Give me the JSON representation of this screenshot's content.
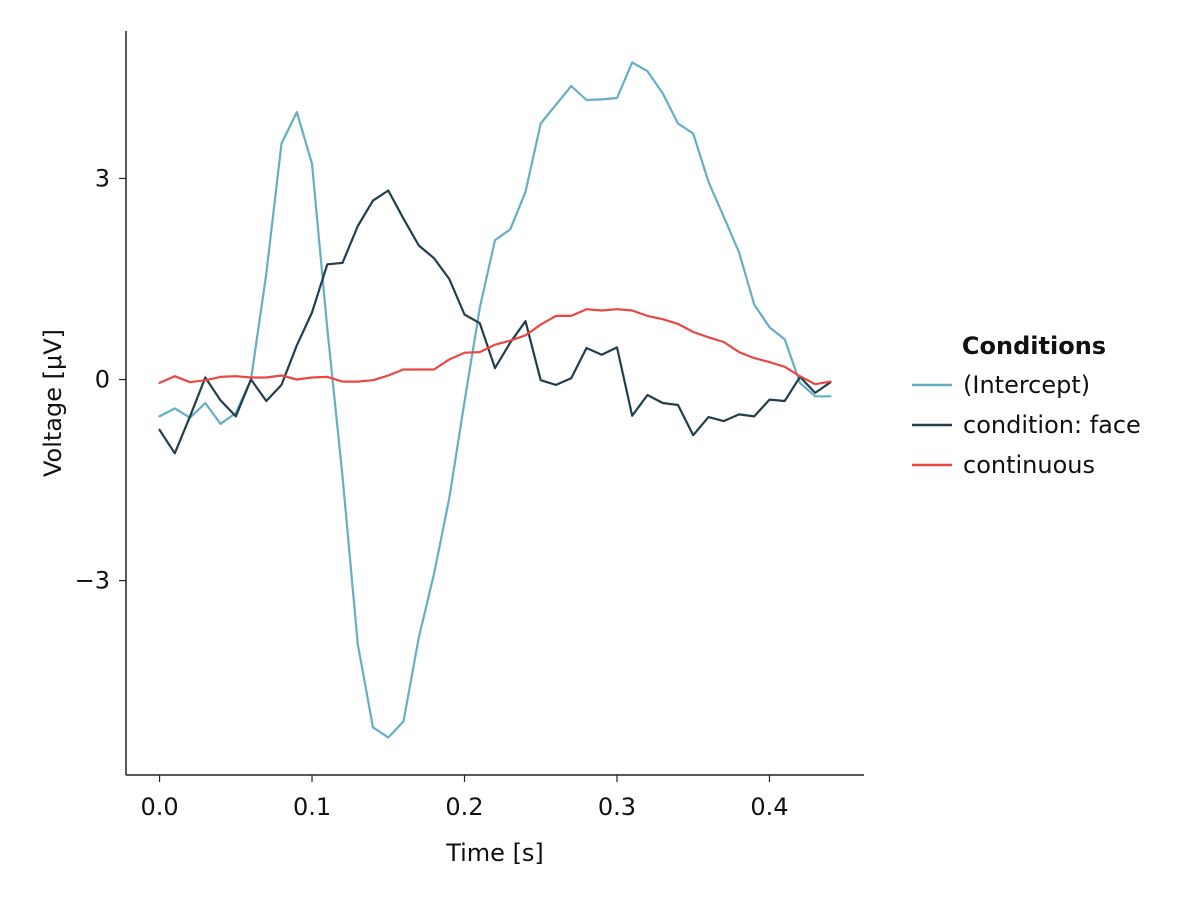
{
  "chart_data": {
    "type": "line",
    "xlabel": "Time [s]",
    "ylabel": "Voltage [μV]",
    "xlim": [
      -0.022,
      0.462
    ],
    "ylim": [
      -5.9,
      5.2
    ],
    "xticks": [
      0.0,
      0.1,
      0.2,
      0.3,
      0.4
    ],
    "xtick_labels": [
      "0.0",
      "0.1",
      "0.2",
      "0.3",
      "0.4"
    ],
    "yticks": [
      3,
      0,
      -3
    ],
    "ytick_labels": [
      "3",
      "0",
      "−3"
    ],
    "grid": false,
    "legend": {
      "title": "Conditions",
      "placement": "right"
    },
    "x": [
      0.0,
      0.01,
      0.02,
      0.03,
      0.04,
      0.05,
      0.06,
      0.07,
      0.08,
      0.09,
      0.1,
      0.11,
      0.12,
      0.13,
      0.14,
      0.15,
      0.16,
      0.17,
      0.18,
      0.19,
      0.2,
      0.21,
      0.22,
      0.23,
      0.24,
      0.25,
      0.26,
      0.27,
      0.28,
      0.29,
      0.3,
      0.31,
      0.32,
      0.33,
      0.34,
      0.35,
      0.36,
      0.37,
      0.38,
      0.39,
      0.4,
      0.41,
      0.42,
      0.43,
      0.44
    ],
    "series": [
      {
        "name": "(Intercept)",
        "color": "#64afc4",
        "values": [
          -0.55,
          -0.43,
          -0.57,
          -0.35,
          -0.66,
          -0.5,
          0.0,
          1.58,
          3.52,
          3.99,
          3.22,
          0.76,
          -1.44,
          -3.95,
          -5.19,
          -5.34,
          -5.1,
          -3.85,
          -2.9,
          -1.77,
          -0.33,
          1.07,
          2.08,
          2.24,
          2.8,
          3.82,
          4.1,
          4.38,
          4.17,
          4.18,
          4.2,
          4.73,
          4.6,
          4.27,
          3.82,
          3.67,
          2.95,
          2.43,
          1.9,
          1.12,
          0.78,
          0.6,
          -0.05,
          -0.25,
          -0.25
        ]
      },
      {
        "name": "condition: face",
        "color": "#223e4b",
        "values": [
          -0.75,
          -1.1,
          -0.55,
          0.03,
          -0.31,
          -0.55,
          0.0,
          -0.32,
          -0.08,
          0.51,
          1.0,
          1.72,
          1.74,
          2.29,
          2.67,
          2.82,
          2.4,
          2.0,
          1.81,
          1.5,
          0.97,
          0.84,
          0.17,
          0.55,
          0.87,
          -0.01,
          -0.08,
          0.02,
          0.47,
          0.37,
          0.48,
          -0.54,
          -0.23,
          -0.35,
          -0.38,
          -0.83,
          -0.56,
          -0.62,
          -0.52,
          -0.55,
          -0.3,
          -0.32,
          0.04,
          -0.2,
          -0.04
        ]
      },
      {
        "name": "continuous",
        "color": "#e84743",
        "values": [
          -0.05,
          0.05,
          -0.04,
          -0.01,
          0.04,
          0.05,
          0.03,
          0.03,
          0.06,
          0.0,
          0.03,
          0.04,
          -0.03,
          -0.03,
          -0.01,
          0.06,
          0.15,
          0.15,
          0.15,
          0.3,
          0.4,
          0.41,
          0.52,
          0.58,
          0.66,
          0.82,
          0.95,
          0.95,
          1.05,
          1.03,
          1.05,
          1.03,
          0.95,
          0.9,
          0.83,
          0.71,
          0.63,
          0.56,
          0.41,
          0.32,
          0.26,
          0.19,
          0.05,
          -0.07,
          -0.03
        ]
      }
    ]
  }
}
